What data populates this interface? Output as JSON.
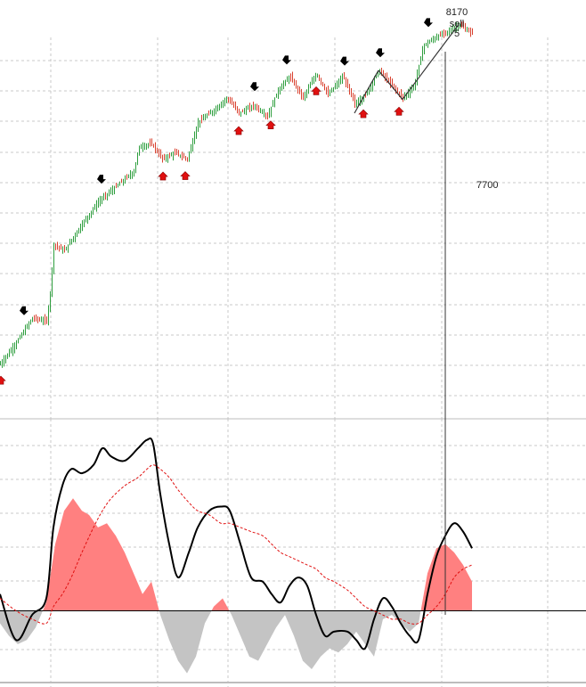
{
  "colors": {
    "background": "#ffffff",
    "grid": "#c8c8c8",
    "up_bar": "#2e9e3e",
    "down_bar": "#d8412f",
    "buy_arrow": "#e01010",
    "sell_arrow": "#000000",
    "oscillator_line": "#000000",
    "signal_line": "#e01010",
    "hist_positive": "#ff8080",
    "hist_negative": "#c4c4c4",
    "panel_divider": "#bdbdbd"
  },
  "annotations": {
    "top_value": "8170",
    "top_signal": "sell",
    "top_count": "5",
    "right_value": "7700"
  },
  "chart_data": [
    {
      "type": "candlestick",
      "panel": "price",
      "title": "",
      "xlabel": "",
      "ylabel": "",
      "grid": true,
      "ylim": [
        6900,
        8240
      ],
      "price_path": [
        [
          0,
          7050
        ],
        [
          18,
          7120
        ],
        [
          36,
          7200
        ],
        [
          52,
          7190
        ],
        [
          56,
          7280
        ],
        [
          60,
          7440
        ],
        [
          72,
          7420
        ],
        [
          90,
          7500
        ],
        [
          110,
          7580
        ],
        [
          130,
          7630
        ],
        [
          150,
          7680
        ],
        [
          156,
          7760
        ],
        [
          170,
          7770
        ],
        [
          182,
          7720
        ],
        [
          196,
          7740
        ],
        [
          210,
          7720
        ],
        [
          222,
          7840
        ],
        [
          240,
          7880
        ],
        [
          255,
          7920
        ],
        [
          268,
          7870
        ],
        [
          285,
          7895
        ],
        [
          300,
          7860
        ],
        [
          312,
          7945
        ],
        [
          325,
          7990
        ],
        [
          340,
          7920
        ],
        [
          355,
          8000
        ],
        [
          368,
          7930
        ],
        [
          385,
          7990
        ],
        [
          398,
          7900
        ],
        [
          410,
          7930
        ],
        [
          425,
          8010
        ],
        [
          440,
          7960
        ],
        [
          452,
          7920
        ],
        [
          465,
          7960
        ],
        [
          475,
          8090
        ],
        [
          490,
          8120
        ],
        [
          505,
          8140
        ],
        [
          515,
          8160
        ],
        [
          530,
          8130
        ]
      ],
      "buy_signals_x": [
        1,
        183,
        208,
        268,
        304,
        355,
        408,
        448
      ],
      "sell_signals_x": [
        27,
        114,
        286,
        322,
        387,
        427,
        481
      ],
      "trend_lines": [
        [
          [
            398,
            7870
          ],
          [
            425,
            8010
          ]
        ],
        [
          [
            425,
            8010
          ],
          [
            452,
            7915
          ]
        ],
        [
          [
            452,
            7915
          ],
          [
            515,
            8160
          ]
        ]
      ],
      "vertical_marker_x": 500
    },
    {
      "type": "line",
      "panel": "oscillator",
      "title": "",
      "xlabel": "",
      "ylabel": "",
      "grid": true,
      "zero_line": true,
      "ylim": [
        -85,
        225
      ],
      "x": [
        0,
        18,
        36,
        52,
        60,
        70,
        80,
        92,
        105,
        115,
        125,
        140,
        155,
        165,
        172,
        180,
        190,
        200,
        212,
        222,
        235,
        248,
        258,
        270,
        282,
        295,
        305,
        315,
        325,
        335,
        345,
        355,
        365,
        375,
        390,
        400,
        410,
        420,
        430,
        440,
        450,
        460,
        470,
        480,
        490,
        500,
        510,
        520,
        530
      ],
      "series": [
        {
          "name": "",
          "style": "solid",
          "values": [
            20,
            -35,
            -5,
            15,
            100,
            150,
            170,
            165,
            175,
            195,
            185,
            180,
            195,
            205,
            200,
            140,
            80,
            40,
            70,
            100,
            120,
            125,
            120,
            80,
            40,
            35,
            20,
            10,
            30,
            40,
            30,
            -5,
            -30,
            -25,
            -25,
            -35,
            -45,
            -10,
            15,
            5,
            -15,
            -30,
            -35,
            20,
            65,
            90,
            105,
            95,
            75
          ]
        },
        {
          "name": "",
          "style": "dashed",
          "values": [
            15,
            0,
            -10,
            -15,
            5,
            20,
            40,
            70,
            100,
            120,
            135,
            150,
            160,
            170,
            175,
            170,
            160,
            145,
            130,
            120,
            115,
            105,
            105,
            100,
            95,
            90,
            80,
            70,
            65,
            60,
            55,
            50,
            40,
            35,
            25,
            15,
            5,
            0,
            -5,
            -10,
            -10,
            -15,
            -15,
            -5,
            5,
            20,
            40,
            50,
            55
          ]
        }
      ],
      "histogram": {
        "x": [
          0,
          10,
          20,
          30,
          40,
          52,
          62,
          72,
          82,
          92,
          100,
          110,
          120,
          130,
          140,
          150,
          160,
          170,
          180,
          190,
          200,
          210,
          220,
          230,
          240,
          250,
          260,
          270,
          280,
          290,
          300,
          310,
          320,
          330,
          340,
          350,
          360,
          370,
          380,
          390,
          400,
          410,
          420,
          430,
          440,
          450,
          460,
          470,
          480,
          490,
          500,
          510,
          520,
          530
        ],
        "values": [
          -15,
          -30,
          -40,
          -35,
          -20,
          10,
          80,
          120,
          135,
          120,
          115,
          100,
          105,
          90,
          70,
          45,
          20,
          35,
          -5,
          -35,
          -60,
          -75,
          -55,
          -15,
          5,
          15,
          -5,
          -30,
          -55,
          -60,
          -40,
          -20,
          -5,
          -30,
          -60,
          -70,
          -55,
          -45,
          -50,
          -40,
          -25,
          -40,
          -55,
          -10,
          -5,
          -15,
          -25,
          -15,
          45,
          75,
          80,
          70,
          55,
          35
        ]
      },
      "vertical_marker_x": 500
    }
  ]
}
